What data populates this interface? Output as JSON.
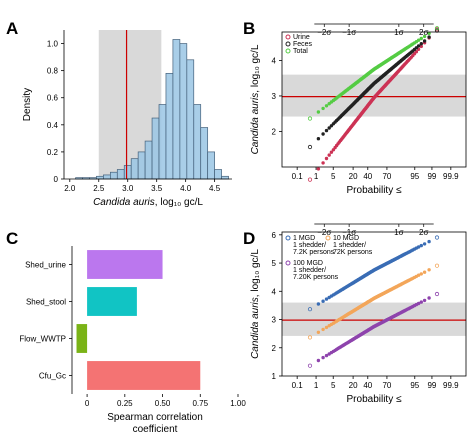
{
  "panels": [
    "A",
    "B",
    "C",
    "D"
  ],
  "chart_data": [
    {
      "panel": "A",
      "type": "bar",
      "xlabel_italic": "Candida auris",
      "xlabel_rest": ", log₁₀ gc/L",
      "ylabel": "Density",
      "xlim": [
        1.9,
        4.8
      ],
      "ylim": [
        0,
        1.1
      ],
      "xticks": [
        "2.0",
        "2.5",
        "3.0",
        "3.5",
        "4.0",
        "4.5"
      ],
      "yticks": [
        "0",
        "0.2",
        "0.4",
        "0.6",
        "0.8",
        "1.0"
      ],
      "bin_width": 0.12,
      "bin_starts": [
        2.1,
        2.22,
        2.34,
        2.46,
        2.58,
        2.7,
        2.82,
        2.94,
        3.06,
        3.18,
        3.3,
        3.42,
        3.54,
        3.66,
        3.78,
        3.9,
        4.02,
        4.14,
        4.26,
        4.38,
        4.5,
        4.62
      ],
      "values": [
        0.01,
        0.01,
        0.01,
        0.02,
        0.03,
        0.05,
        0.07,
        0.1,
        0.15,
        0.2,
        0.28,
        0.45,
        0.55,
        0.78,
        1.03,
        1.0,
        0.88,
        0.55,
        0.38,
        0.2,
        0.07,
        0.02
      ],
      "shaded_range": [
        2.5,
        3.58
      ],
      "reference_line": 2.98,
      "colors": {
        "bars": "#9ac6e4",
        "bar_edge": "#44607a",
        "band": "#d9d9d9",
        "line": "#cc0000"
      }
    },
    {
      "panel": "B",
      "type": "scatter",
      "xlabel": "Probability ≤",
      "ylabel_italic": "Candida auris",
      "ylabel_rest": ", log₁₀ gc/L",
      "xticks": [
        "0.1",
        "1",
        "5",
        "20",
        "40",
        "70",
        "95",
        "99",
        "99.9"
      ],
      "xticks_z": [
        -3.09,
        -2.33,
        -1.64,
        -0.84,
        -0.25,
        0.52,
        1.64,
        2.33,
        3.09
      ],
      "top_axis_labels": [
        "−2σ",
        "−1σ",
        "1σ",
        "2σ"
      ],
      "top_axis_z": [
        -2,
        -1,
        1,
        2
      ],
      "xlim_z": [
        -3.7,
        3.7
      ],
      "ylim": [
        1.0,
        4.8
      ],
      "yticks": [
        "2",
        "3",
        "4"
      ],
      "shaded_range": [
        2.42,
        3.6
      ],
      "reference_line": 2.98,
      "series": [
        {
          "name": "Urine",
          "color": "#cc3355",
          "median": 2.95,
          "spread": 0.8
        },
        {
          "name": "Feces",
          "color": "#222222",
          "median": 3.35,
          "spread": 0.62
        },
        {
          "name": "Total",
          "color": "#55cc44",
          "median": 3.75,
          "spread": 0.48
        }
      ]
    },
    {
      "panel": "C",
      "type": "bar",
      "orientation": "horizontal",
      "xlabel": "Spearman correlation coefficient",
      "categories": [
        "Shed_urine",
        "Shed_stool",
        "Flow_WWTP",
        "Cfu_Gc"
      ],
      "values": [
        0.5,
        0.33,
        -0.07,
        0.75
      ],
      "colors": [
        "#bb77ee",
        "#11c4c4",
        "#7ab317",
        "#f47373"
      ],
      "xlim": [
        -0.1,
        1.0
      ],
      "xticks": [
        "0",
        "0.25",
        "0.50",
        "0.75",
        "1.00"
      ]
    },
    {
      "panel": "D",
      "type": "scatter",
      "xlabel": "Probability ≤",
      "ylabel_italic": "Candida auris",
      "ylabel_rest": ", log₁₀ gc/L",
      "xticks": [
        "0.1",
        "1",
        "5",
        "20",
        "40",
        "70",
        "95",
        "99",
        "99.9"
      ],
      "xticks_z": [
        -3.09,
        -2.33,
        -1.64,
        -0.84,
        -0.25,
        0.52,
        1.64,
        2.33,
        3.09
      ],
      "top_axis_labels": [
        "−2σ",
        "−1σ",
        "1σ",
        "2σ"
      ],
      "top_axis_z": [
        -2,
        -1,
        1,
        2
      ],
      "xlim_z": [
        -3.7,
        3.7
      ],
      "ylim": [
        1.0,
        6.1
      ],
      "yticks": [
        "1",
        "2",
        "3",
        "4",
        "5",
        "6"
      ],
      "shaded_range": [
        2.42,
        3.6
      ],
      "reference_line": 2.98,
      "series": [
        {
          "name": "1 MGD\n1 shedder/\n7.2K persons",
          "color": "#3a6db5",
          "median": 4.75,
          "spread": 0.48
        },
        {
          "name": "10 MGD\n1 shedder/\n72K persons",
          "color": "#f3a65a",
          "median": 3.75,
          "spread": 0.48
        },
        {
          "name": "100 MGD\n1 shedder/\n7.20K persons",
          "color": "#8e44ad",
          "median": 2.75,
          "spread": 0.48
        }
      ]
    }
  ]
}
